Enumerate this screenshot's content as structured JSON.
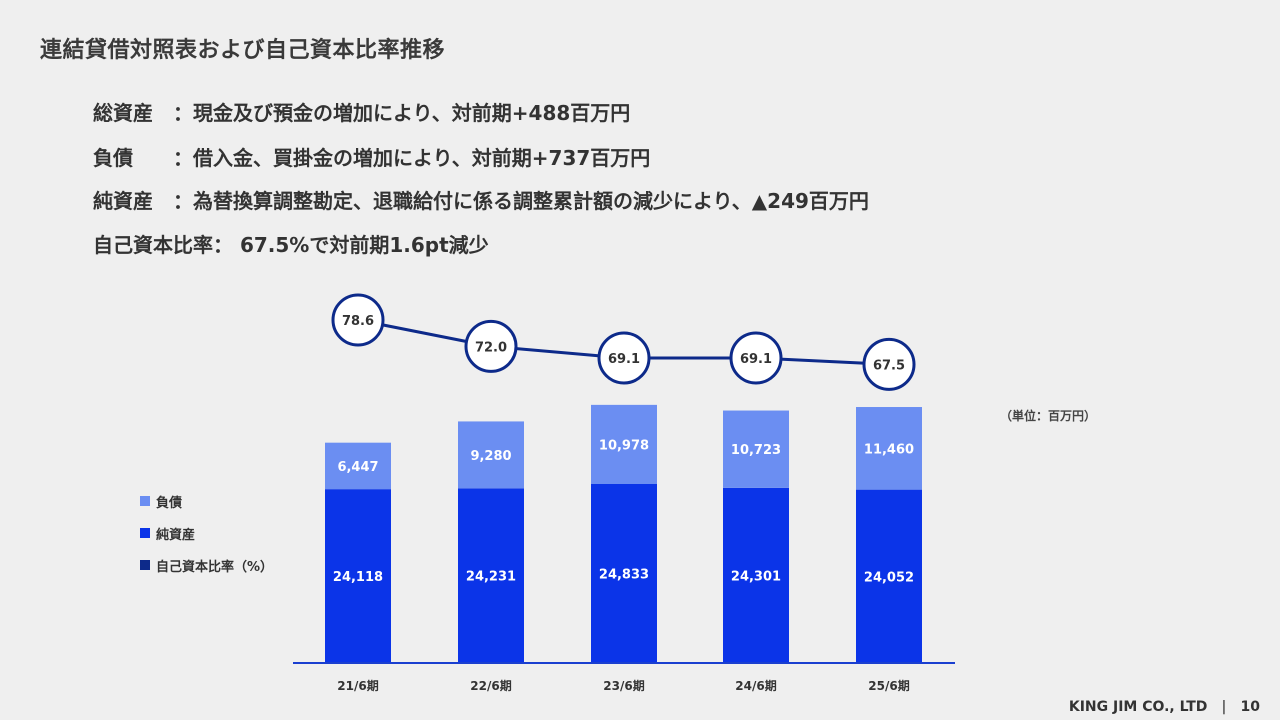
{
  "page": {
    "title": "連結貸借対照表および自己資本比率推移",
    "footer_company": "KING JIM CO., LTD",
    "footer_separator": "|",
    "page_number": "10"
  },
  "summary": [
    {
      "label": "総資産",
      "text": "：現金及び預金の増加により、対前期+488百万円"
    },
    {
      "label": "負債",
      "text": "：借入金、買掛金の増加により、対前期+737百万円"
    },
    {
      "label": "純資産",
      "text": "：為替換算調整勘定、退職給付に係る調整累計額の減少により、▲249百万円"
    },
    {
      "label": "自己資本比率",
      "text": "： 67.5%で対前期1.6pt減少"
    }
  ],
  "chart_data": {
    "type": "bar",
    "stacked": true,
    "unit_note": "（単位：百万円）",
    "categories": [
      "21/6期",
      "22/6期",
      "23/6期",
      "24/6期",
      "25/6期"
    ],
    "series": [
      {
        "name": "純資産",
        "values": [
          24118,
          24231,
          24833,
          24301,
          24052
        ],
        "labels": [
          "24,118",
          "24,231",
          "24,833",
          "24,301",
          "24,052"
        ],
        "color": "#0b34e8"
      },
      {
        "name": "負債",
        "values": [
          6447,
          9280,
          10978,
          10723,
          11460
        ],
        "labels": [
          "6,447",
          "9,280",
          "10,978",
          "10,723",
          "11,460"
        ],
        "color": "#6b8ef2"
      }
    ],
    "line_series": {
      "name": "自己資本比率（%）",
      "values": [
        78.6,
        72.0,
        69.1,
        69.1,
        67.5
      ],
      "labels": [
        "78.6",
        "72.0",
        "69.1",
        "69.1",
        "67.5"
      ],
      "color": "#0d2a8a"
    },
    "legend_position": "left",
    "grid": false
  }
}
